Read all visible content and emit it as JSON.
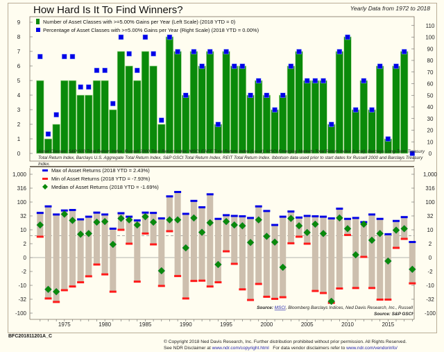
{
  "header": {
    "title": "How Hard Is It To Find Winners?",
    "subtitle": "Yearly Data from 1972 to 2018"
  },
  "footer": {
    "chart_code": "BFC201811201A_C",
    "copyright": "© Copyright 2018 Ned Davis Research, Inc. Further distribution prohibited without prior permission. All Rights Reserved.",
    "disclaimer_prefix": "See NDR Disclaimer at ",
    "disclaimer_link": "www.ndr.com/copyright.html",
    "vendor_prefix": "   For data vendor disclaimers refer to ",
    "vendor_link": "www.ndr.com/vendorinfo/"
  },
  "colors": {
    "background": "#fffdf0",
    "bar_green": "#0a8a0a",
    "marker_blue": "#0000e6",
    "range_tan": "#cdbfae",
    "min_red": "#ff1a1a",
    "median_green": "#0a8a0a"
  },
  "chart_data": [
    {
      "type": "bar",
      "title": "Asset classes with >=5% gains per year",
      "x": [
        1972,
        1973,
        1974,
        1975,
        1976,
        1977,
        1978,
        1979,
        1980,
        1981,
        1982,
        1983,
        1984,
        1985,
        1986,
        1987,
        1988,
        1989,
        1990,
        1991,
        1992,
        1993,
        1994,
        1995,
        1996,
        1997,
        1998,
        1999,
        2000,
        2001,
        2002,
        2003,
        2004,
        2005,
        2006,
        2007,
        2008,
        2009,
        2010,
        2011,
        2012,
        2013,
        2014,
        2015,
        2016,
        2017,
        2018
      ],
      "series": [
        {
          "name": "Number of Asset Classes with >=5.00% Gains per Year (Left Scale) (2018 YTD = 0)",
          "axis": "left",
          "values": [
            5,
            1,
            2,
            5,
            5,
            4,
            4,
            5,
            5,
            3,
            7,
            6,
            5,
            7,
            6,
            2,
            8,
            7,
            4,
            7,
            6,
            7,
            2,
            7,
            6,
            6,
            4,
            5,
            4,
            3,
            4,
            6,
            7,
            5,
            5,
            5,
            2,
            7,
            8,
            3,
            5,
            3,
            6,
            1,
            6,
            7,
            0
          ]
        },
        {
          "name": "Percentage of Asset Classes with >=5.00% Gains per Year (Right Scale) (2018 YTD = 0.00%)",
          "axis": "right",
          "values": [
            83.3,
            16.7,
            33.3,
            83.3,
            83.3,
            57.1,
            57.1,
            71.4,
            71.4,
            42.9,
            100,
            85.7,
            71.4,
            100,
            85.7,
            28.6,
            100,
            87.5,
            50,
            87.5,
            75,
            87.5,
            25,
            87.5,
            75,
            75,
            50,
            62.5,
            50,
            37.5,
            50,
            75,
            87.5,
            62.5,
            62.5,
            62.5,
            25,
            87.5,
            100,
            37.5,
            62.5,
            37.5,
            75,
            12.5,
            75,
            87.5,
            0
          ]
        }
      ],
      "left_axis": {
        "ticks": [
          0,
          1,
          2,
          3,
          4,
          5,
          6,
          7,
          8,
          9
        ],
        "range": [
          0,
          9
        ]
      },
      "right_axis": {
        "ticks": [
          0,
          10,
          20,
          30,
          40,
          50,
          60,
          70,
          80,
          90,
          100,
          110
        ],
        "range": [
          0,
          110
        ]
      },
      "note_lines": [
        "Asset Classes: S&P 500 Total Return Index,  Russell 2000 Total Return Index,  MSCI EAFE Total Return Index (Local),  MSCI Emerging Markets Total Return Index (Local),  Barclays Long-Term Treasury",
        "Total Return Index,  Barclays U.S. Aggregate Total Return Index,  S&P GSCI Total Return Index,  REIT Total Return Index. Ibbotson data used prior to start dates for Russell 2000 and Barclays Treasury",
        "Index."
      ]
    },
    {
      "type": "range",
      "title": "Asset returns range (%)",
      "x": [
        1972,
        1973,
        1974,
        1975,
        1976,
        1977,
        1978,
        1979,
        1980,
        1981,
        1982,
        1983,
        1984,
        1985,
        1986,
        1987,
        1988,
        1989,
        1990,
        1991,
        1992,
        1993,
        1994,
        1995,
        1996,
        1997,
        1998,
        1999,
        2000,
        2001,
        2002,
        2003,
        2004,
        2005,
        2006,
        2007,
        2008,
        2009,
        2010,
        2011,
        2012,
        2013,
        2014,
        2015,
        2016,
        2017,
        2018
      ],
      "series": [
        {
          "name": "Max of Asset Returns (2018 YTD = 2.43%)",
          "values": [
            41,
            70,
            36,
            50,
            52,
            24,
            30,
            42,
            36,
            11,
            40,
            30,
            22,
            42,
            41,
            26,
            160,
            230,
            38,
            110,
            65,
            190,
            25,
            34,
            32,
            31,
            27,
            70,
            48,
            15,
            30,
            46,
            28,
            32,
            31,
            30,
            26,
            58,
            25,
            27,
            19,
            36,
            25,
            6,
            21,
            29,
            2.43
          ]
        },
        {
          "name": "Min of Asset Returns (2018 YTD = -7.93%)",
          "values": [
            4.5,
            -30,
            -40,
            -15,
            -11,
            -7,
            -3.5,
            -1,
            -2.8,
            -17,
            10,
            2,
            -6.5,
            6.5,
            1.9,
            -10.5,
            8.5,
            -3.4,
            -30,
            -6,
            -5.8,
            -11,
            -7,
            0.9,
            -0.9,
            -14,
            -34,
            -8.5,
            -26,
            -31,
            -27,
            2.1,
            4.5,
            2,
            -16,
            -19,
            -43,
            -13,
            5.5,
            -12.5,
            0.1,
            -12.5,
            -33,
            -33,
            1.4,
            3.5,
            -7.93
          ]
        },
        {
          "name": "Median of Asset Returns (2018 YTD = -1.69%)",
          "values": [
            15,
            -14,
            -17,
            37,
            22,
            6,
            6.5,
            19,
            20,
            1.9,
            26,
            23,
            15,
            30,
            19,
            -1.9,
            23,
            23,
            1.4,
            27,
            7.5,
            18,
            -1,
            20,
            15,
            14,
            2.3,
            23,
            4.7,
            2.4,
            -1.4,
            26,
            14,
            7.3,
            16,
            6.5,
            -38,
            27,
            11,
            0.4,
            16,
            3,
            6.5,
            -0.5,
            9.6,
            11,
            -1.69
          ]
        }
      ],
      "y_scale": "symlog",
      "y_ticks": [
        -100,
        -32,
        -10,
        -2,
        0,
        2,
        10,
        32,
        100,
        316,
        1000
      ],
      "y_tick_labels": [
        "-100",
        "-32",
        "-10",
        "-2",
        "0",
        "2",
        "10",
        "32",
        "100",
        "316",
        "1,000"
      ],
      "reference_line": 5,
      "x_tick_labels": [
        "1975",
        "1980",
        "1985",
        "1990",
        "1995",
        "2000",
        "2005",
        "2010",
        "2015"
      ],
      "source_line1_prefix": "Source: ",
      "source_line1_link": "MSCI",
      "source_line1_rest": ", Bloomberg Barclays Indices, Ned Davis Research, Inc., Russell",
      "source_line2": "Source: S&P GSCI"
    }
  ]
}
